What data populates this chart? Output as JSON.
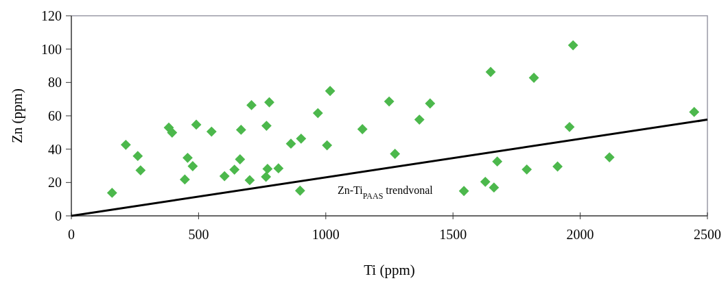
{
  "chart_data": {
    "type": "scatter",
    "xlabel": "Ti (ppm)",
    "ylabel": "Zn (ppm)",
    "xlim": [
      0,
      2500
    ],
    "xticks": [
      0,
      500,
      1000,
      1500,
      2000,
      2500
    ],
    "ylim": [
      0,
      120
    ],
    "yticks": [
      0,
      20,
      40,
      60,
      80,
      100,
      120
    ],
    "grid": false,
    "marker": "diamond",
    "series": [
      {
        "color": "#4cb84c",
        "x": [
          160,
          214,
          261,
          272,
          383,
          396,
          491,
          446,
          457,
          477,
          551,
          602,
          641,
          663,
          667,
          701,
          708,
          765,
          771,
          767,
          778,
          814,
          863,
          903,
          899,
          969,
          1005,
          1017,
          1144,
          1249,
          1272,
          1368,
          1410,
          1543,
          1627,
          1648,
          1661,
          1674,
          1790,
          1818,
          1911,
          1958,
          1972,
          2115,
          2448
        ],
        "values": [
          13.8,
          42.6,
          35.9,
          27.3,
          52.9,
          49.9,
          54.7,
          21.8,
          34.8,
          29.8,
          50.5,
          23.8,
          27.7,
          33.9,
          51.6,
          21.4,
          66.4,
          23.4,
          28.2,
          54.0,
          68.1,
          28.5,
          43.3,
          46.3,
          15.1,
          61.6,
          42.3,
          74.9,
          52.0,
          68.6,
          37.2,
          57.7,
          67.4,
          14.9,
          20.4,
          86.3,
          17.0,
          32.6,
          27.8,
          82.8,
          29.6,
          53.3,
          102.3,
          35.1,
          62.3
        ]
      },
      {
        "type": "line",
        "color": "#000000",
        "marker": "none",
        "line_style": "solid",
        "x": [
          0,
          2500
        ],
        "values": [
          0,
          57.7
        ]
      }
    ],
    "annotations": [
      "Zn-Ti$_{PAAS}$ trendvonal"
    ]
  }
}
